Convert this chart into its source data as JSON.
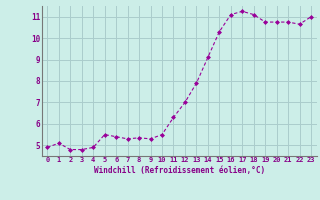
{
  "x": [
    0,
    1,
    2,
    3,
    4,
    5,
    6,
    7,
    8,
    9,
    10,
    11,
    12,
    13,
    14,
    15,
    16,
    17,
    18,
    19,
    20,
    21,
    22,
    23
  ],
  "y": [
    4.9,
    5.1,
    4.8,
    4.8,
    4.9,
    5.5,
    5.4,
    5.3,
    5.35,
    5.3,
    5.5,
    6.3,
    7.0,
    7.9,
    9.1,
    10.3,
    11.1,
    11.25,
    11.1,
    10.75,
    10.75,
    10.75,
    10.65,
    11.0
  ],
  "line_color": "#990099",
  "marker": "D",
  "marker_size": 2.0,
  "bg_color": "#cceee8",
  "grid_color": "#aacccc",
  "xlabel": "Windchill (Refroidissement éolien,°C)",
  "xlabel_color": "#880088",
  "tick_color": "#880088",
  "ylim": [
    4.5,
    11.5
  ],
  "xlim": [
    -0.5,
    23.5
  ],
  "yticks": [
    5,
    6,
    7,
    8,
    9,
    10,
    11
  ],
  "xticks": [
    0,
    1,
    2,
    3,
    4,
    5,
    6,
    7,
    8,
    9,
    10,
    11,
    12,
    13,
    14,
    15,
    16,
    17,
    18,
    19,
    20,
    21,
    22,
    23
  ]
}
